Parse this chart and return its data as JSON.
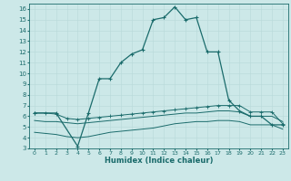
{
  "xlabel": "Humidex (Indice chaleur)",
  "background_color": "#cce8e8",
  "line_color": "#1a6b6b",
  "grid_color": "#b8d8d8",
  "xlim": [
    -0.5,
    23.5
  ],
  "ylim": [
    3,
    16.5
  ],
  "xtick_labels": [
    "0",
    "1",
    "2",
    "3",
    "4",
    "5",
    "6",
    "7",
    "8",
    "9",
    "10",
    "11",
    "12",
    "13",
    "14",
    "15",
    "16",
    "17",
    "18",
    "19",
    "20",
    "21",
    "22",
    "23"
  ],
  "xtick_pos": [
    0,
    1,
    2,
    3,
    4,
    5,
    6,
    7,
    8,
    9,
    10,
    11,
    12,
    13,
    14,
    15,
    16,
    17,
    18,
    19,
    20,
    21,
    22,
    23
  ],
  "ytick_pos": [
    3,
    4,
    5,
    6,
    7,
    8,
    9,
    10,
    11,
    12,
    13,
    14,
    15,
    16
  ],
  "line1_x": [
    0,
    2,
    4,
    5,
    6,
    7,
    8,
    9,
    10,
    11,
    12,
    13,
    14,
    15,
    16,
    17,
    18,
    19,
    20,
    21,
    22,
    23
  ],
  "line1_y": [
    6.3,
    6.3,
    3.2,
    6.3,
    9.5,
    9.5,
    11.0,
    11.8,
    12.2,
    15.0,
    15.2,
    16.2,
    15.0,
    15.2,
    12.0,
    12.0,
    7.5,
    6.5,
    6.0,
    6.0,
    5.2,
    5.2
  ],
  "line2_x": [
    0,
    1,
    2,
    3,
    4,
    5,
    6,
    7,
    8,
    9,
    10,
    11,
    12,
    13,
    14,
    15,
    16,
    17,
    18,
    19,
    20,
    21,
    22,
    23
  ],
  "line2_y": [
    6.3,
    6.3,
    6.2,
    5.8,
    5.7,
    5.8,
    5.9,
    6.0,
    6.1,
    6.2,
    6.3,
    6.4,
    6.5,
    6.6,
    6.7,
    6.8,
    6.9,
    7.0,
    7.0,
    7.0,
    6.4,
    6.4,
    6.4,
    5.3
  ],
  "line3_x": [
    0,
    1,
    2,
    3,
    4,
    5,
    6,
    7,
    8,
    9,
    10,
    11,
    12,
    13,
    14,
    15,
    16,
    17,
    18,
    19,
    20,
    21,
    22,
    23
  ],
  "line3_y": [
    5.6,
    5.5,
    5.5,
    5.4,
    5.3,
    5.4,
    5.5,
    5.6,
    5.7,
    5.8,
    5.9,
    6.0,
    6.1,
    6.2,
    6.3,
    6.3,
    6.4,
    6.5,
    6.5,
    6.4,
    6.0,
    6.0,
    6.0,
    5.5
  ],
  "line4_x": [
    0,
    1,
    2,
    3,
    4,
    5,
    6,
    7,
    8,
    9,
    10,
    11,
    12,
    13,
    14,
    15,
    16,
    17,
    18,
    19,
    20,
    21,
    22,
    23
  ],
  "line4_y": [
    4.5,
    4.4,
    4.3,
    4.1,
    4.0,
    4.1,
    4.3,
    4.5,
    4.6,
    4.7,
    4.8,
    4.9,
    5.1,
    5.3,
    5.4,
    5.5,
    5.5,
    5.6,
    5.6,
    5.5,
    5.2,
    5.2,
    5.2,
    4.8
  ]
}
